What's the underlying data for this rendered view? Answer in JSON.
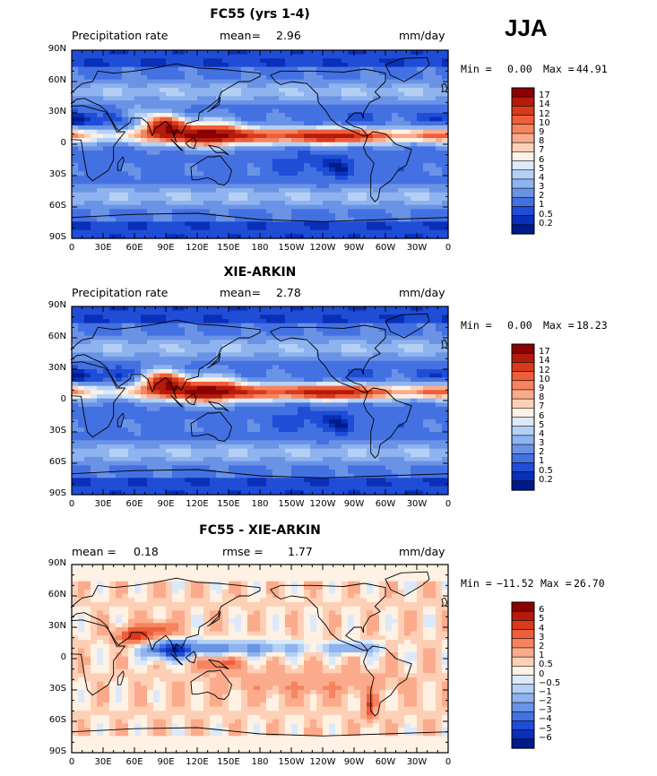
{
  "season": "JJA",
  "panels": [
    {
      "title": "FC55 (yrs 1-4)",
      "left_label": "Precipitation rate",
      "stat1_label": "mean=",
      "stat1_value": "2.96",
      "stat2_label": "",
      "stat2_value": "",
      "units": "mm/day",
      "min_label": "Min =",
      "min_value": "0.00",
      "max_label": "Max =",
      "max_value": "44.91",
      "colorbar_levels": [
        "17",
        "14",
        "12",
        "10",
        "9",
        "8",
        "7",
        "6",
        "5",
        "4",
        "3",
        "2",
        "1",
        "0.5",
        "0.2"
      ],
      "colorbar_colors": [
        "#8b0000",
        "#b31b0c",
        "#d93a1c",
        "#ee5e3a",
        "#f6845f",
        "#fbab8c",
        "#fdd0b6",
        "#fff1e3",
        "#dbe9fb",
        "#b5d0f5",
        "#8eb3ee",
        "#6a93e6",
        "#4471e2",
        "#1f4dd6",
        "#0a2fb8",
        "#001a8a"
      ]
    },
    {
      "title": "XIE-ARKIN",
      "left_label": "Precipitation rate",
      "stat1_label": "mean=",
      "stat1_value": "2.78",
      "stat2_label": "",
      "stat2_value": "",
      "units": "mm/day",
      "min_label": "Min =",
      "min_value": "0.00",
      "max_label": "Max =",
      "max_value": "18.23",
      "colorbar_levels": [
        "17",
        "14",
        "12",
        "10",
        "9",
        "8",
        "7",
        "6",
        "5",
        "4",
        "3",
        "2",
        "1",
        "0.5",
        "0.2"
      ],
      "colorbar_colors": [
        "#8b0000",
        "#b31b0c",
        "#d93a1c",
        "#ee5e3a",
        "#f6845f",
        "#fbab8c",
        "#fdd0b6",
        "#fff1e3",
        "#dbe9fb",
        "#b5d0f5",
        "#8eb3ee",
        "#6a93e6",
        "#4471e2",
        "#1f4dd6",
        "#0a2fb8",
        "#001a8a"
      ]
    },
    {
      "title": "FC55 - XIE-ARKIN",
      "left_label": "",
      "stat1_label": "mean =",
      "stat1_value": "0.18",
      "stat2_label": "rmse =",
      "stat2_value": "1.77",
      "units": "mm/day",
      "min_label": "Min =",
      "min_value": "−11.52",
      "max_label": "Max =",
      "max_value": "26.70",
      "colorbar_levels": [
        "6",
        "5",
        "4",
        "3",
        "2",
        "1",
        "0.5",
        "0",
        "−0.5",
        "−1",
        "−2",
        "−3",
        "−4",
        "−5",
        "−6"
      ],
      "colorbar_colors": [
        "#8b0000",
        "#b31b0c",
        "#d93a1c",
        "#ee5e3a",
        "#f6845f",
        "#fbab8c",
        "#fdd0b6",
        "#fff1e3",
        "#dbe9fb",
        "#b5d0f5",
        "#8eb3ee",
        "#6a93e6",
        "#4471e2",
        "#1f4dd6",
        "#0a2fb8",
        "#001a8a"
      ]
    }
  ],
  "chart_data": [
    {
      "type": "heatmap",
      "title": "FC55 (yrs 1-4)",
      "variable": "Precipitation rate",
      "units": "mm/day",
      "mean": 2.96,
      "min": 0.0,
      "max": 44.91,
      "contour_levels": [
        0.2,
        0.5,
        1,
        2,
        3,
        4,
        5,
        6,
        7,
        8,
        9,
        10,
        12,
        14,
        17
      ],
      "xlabels": [
        "0",
        "30E",
        "60E",
        "90E",
        "120E",
        "150E",
        "180",
        "150W",
        "120W",
        "90W",
        "60W",
        "30W",
        "0"
      ],
      "ylabels": [
        "90N",
        "60N",
        "30N",
        "0",
        "30S",
        "60S",
        "90S"
      ],
      "xlim": [
        0,
        360
      ],
      "ylim": [
        -90,
        90
      ]
    },
    {
      "type": "heatmap",
      "title": "XIE-ARKIN",
      "variable": "Precipitation rate",
      "units": "mm/day",
      "mean": 2.78,
      "min": 0.0,
      "max": 18.23,
      "contour_levels": [
        0.2,
        0.5,
        1,
        2,
        3,
        4,
        5,
        6,
        7,
        8,
        9,
        10,
        12,
        14,
        17
      ],
      "xlabels": [
        "0",
        "30E",
        "60E",
        "90E",
        "120E",
        "150E",
        "180",
        "150W",
        "120W",
        "90W",
        "60W",
        "30W",
        "0"
      ],
      "ylabels": [
        "90N",
        "60N",
        "30N",
        "0",
        "30S",
        "60S",
        "90S"
      ],
      "xlim": [
        0,
        360
      ],
      "ylim": [
        -90,
        90
      ]
    },
    {
      "type": "heatmap",
      "title": "FC55 - XIE-ARKIN",
      "units": "mm/day",
      "mean": 0.18,
      "rmse": 1.77,
      "min": -11.52,
      "max": 26.7,
      "contour_levels": [
        -6,
        -5,
        -4,
        -3,
        -2,
        -1,
        -0.5,
        0,
        0.5,
        1,
        2,
        3,
        4,
        5,
        6
      ],
      "xlabels": [
        "0",
        "30E",
        "60E",
        "90E",
        "120E",
        "150E",
        "180",
        "150W",
        "120W",
        "90W",
        "60W",
        "30W",
        "0"
      ],
      "ylabels": [
        "90N",
        "60N",
        "30N",
        "0",
        "30S",
        "60S",
        "90S"
      ],
      "xlim": [
        0,
        360
      ],
      "ylim": [
        -90,
        90
      ]
    }
  ]
}
